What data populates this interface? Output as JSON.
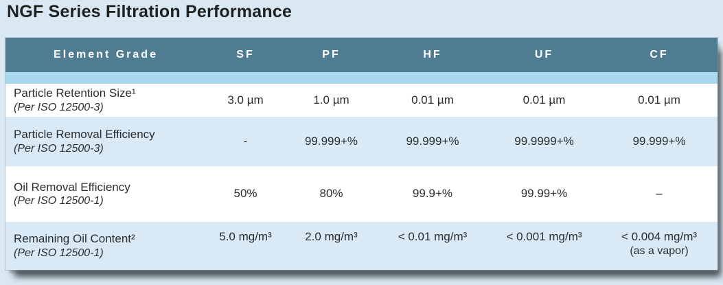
{
  "title": "NGF Series Filtration Performance",
  "colors": {
    "page_bg": "#D9E8F2",
    "header_bg": "#4F7C91",
    "header_text": "#FFFFFF",
    "accent_strip": "#A9D8EF",
    "row_alt_bg": "#D9EAF6",
    "row_bg": "#FFFFFF",
    "text": "#2B2D2E"
  },
  "table": {
    "columns": [
      {
        "label": "Element Grade"
      },
      {
        "label": "SF"
      },
      {
        "label": "PF"
      },
      {
        "label": "HF"
      },
      {
        "label": "UF"
      },
      {
        "label": "CF"
      }
    ],
    "rows": [
      {
        "label": "Particle Retention Size¹",
        "sublabel": "(Per ISO 12500-3)",
        "values": [
          "3.0 µm",
          "1.0 µm",
          "0.01 µm",
          "0.01 µm",
          "0.01 µm"
        ],
        "note": ""
      },
      {
        "label": "Particle Removal Efficiency",
        "sublabel": "(Per ISO 12500-3)",
        "values": [
          "-",
          "99.999+%",
          "99.999+%",
          "99.9999+%",
          "99.999+%"
        ],
        "note": ""
      },
      {
        "label": "Oil Removal Efficiency",
        "sublabel": "(Per ISO 12500-1)",
        "values": [
          "50%",
          "80%",
          "99.9+%",
          "99.99+%",
          "–"
        ],
        "note": ""
      },
      {
        "label": "Remaining Oil Content²",
        "sublabel": "(Per ISO 12500-1)",
        "values": [
          "5.0 mg/m³",
          "2.0 mg/m³",
          "< 0.01 mg/m³",
          "< 0.001 mg/m³",
          "< 0.004 mg/m³"
        ],
        "note": "(as a vapor)"
      }
    ]
  }
}
